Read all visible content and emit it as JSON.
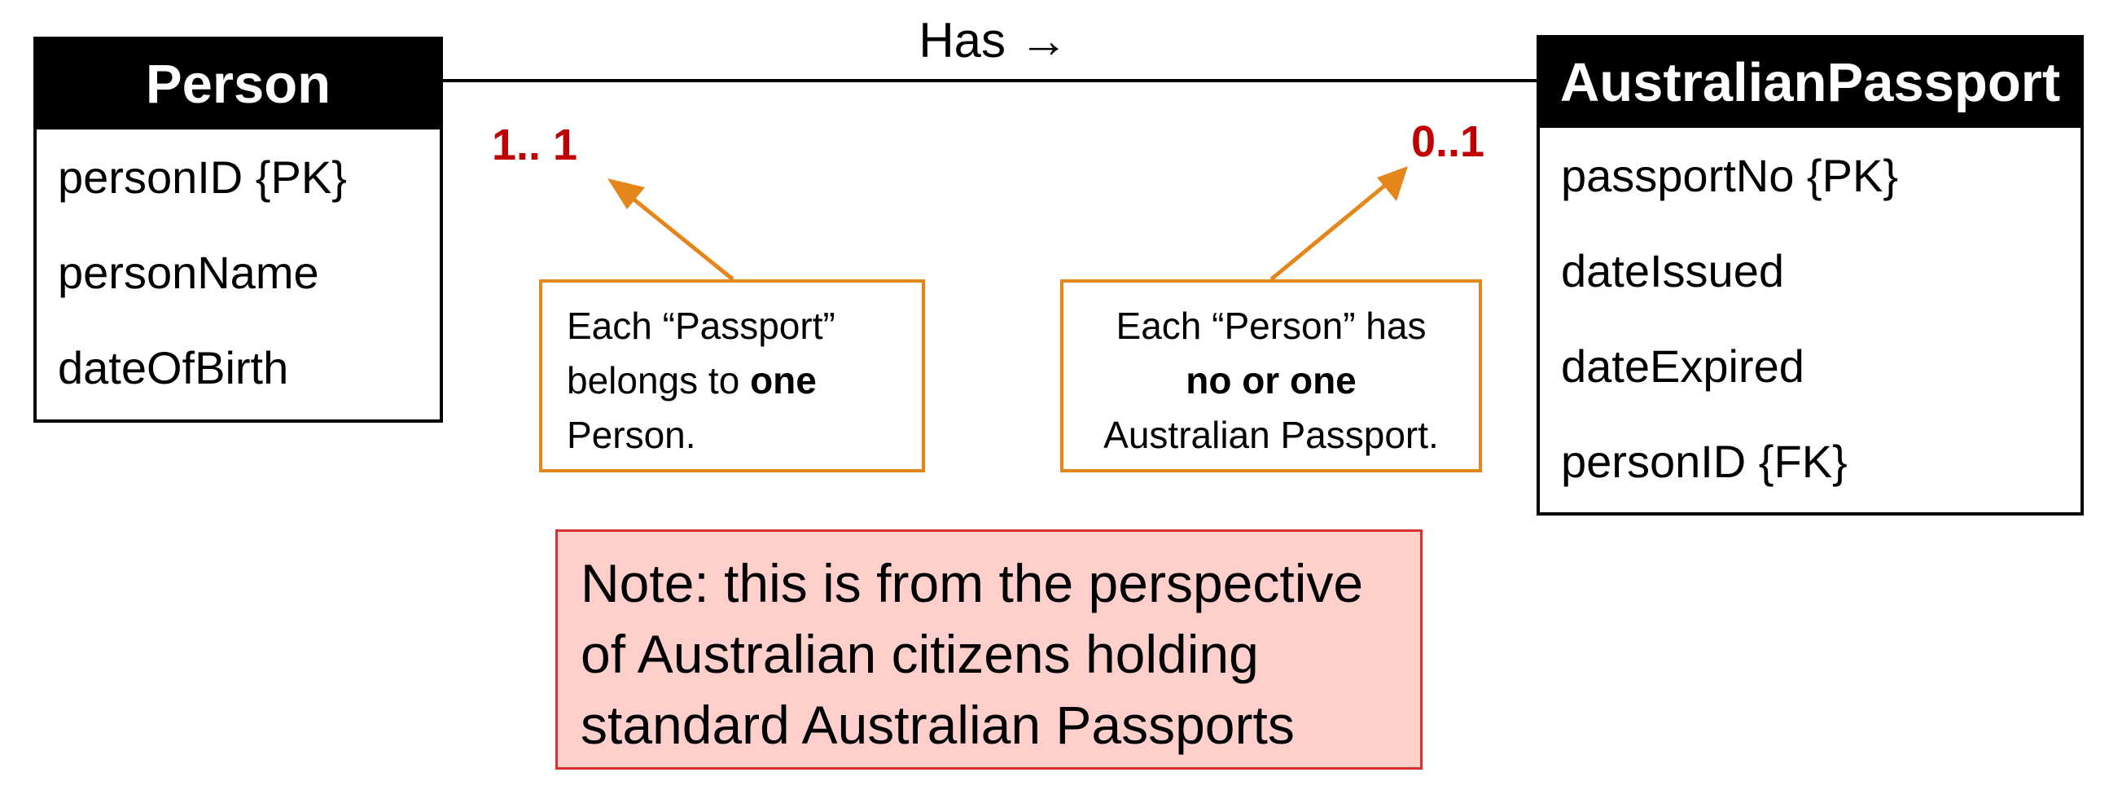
{
  "entities": {
    "person": {
      "name": "Person",
      "attributes": [
        "personID {PK}",
        "personName",
        "dateOfBirth"
      ]
    },
    "passport": {
      "name": "AustralianPassport",
      "attributes": [
        "passportNo {PK}",
        "dateIssued",
        "dateExpired",
        "personID {FK}"
      ]
    }
  },
  "relationship": {
    "label": "Has →",
    "multiplicity_left": "1.. 1",
    "multiplicity_right": "0..1"
  },
  "callouts": {
    "left": {
      "line1": "Each “Passport”",
      "line2_prefix": "belongs to ",
      "line2_bold": "one",
      "line3": "Person."
    },
    "right": {
      "line1": "Each “Person” has",
      "line2_bold": "no or one",
      "line3": "Australian Passport."
    }
  },
  "note": {
    "lines": [
      "Note: this is from the perspective",
      "of Australian citizens holding",
      "standard Australian Passports"
    ]
  },
  "colors": {
    "multiplicity": "#c00000",
    "callout_border": "#e4861a",
    "note_fill": "#ffcfcc",
    "note_border": "#d93030"
  }
}
